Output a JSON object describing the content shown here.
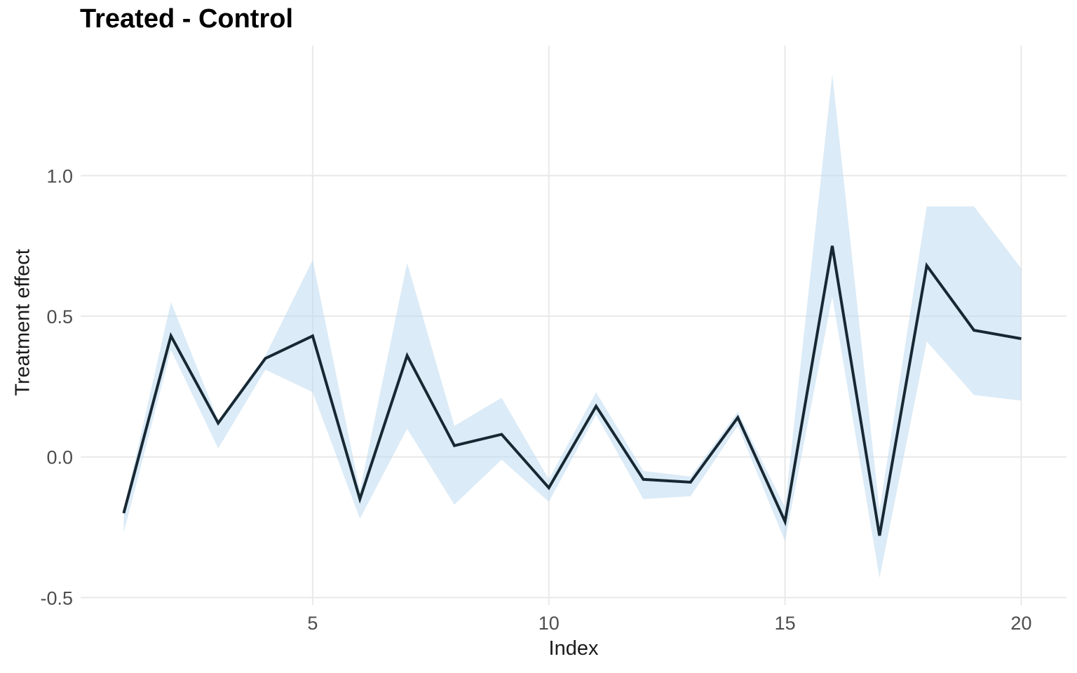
{
  "title": "Treated - Control",
  "chart_data": {
    "type": "line",
    "title": "Treated - Control",
    "xlabel": "Index",
    "ylabel": "Treatment effect",
    "grid": "major-only",
    "legend": "none",
    "xlim": [
      0.05,
      20.95
    ],
    "ylim": [
      -0.55,
      1.46
    ],
    "x": [
      1,
      2,
      3,
      4,
      5,
      6,
      7,
      8,
      9,
      10,
      11,
      12,
      13,
      14,
      15,
      16,
      17,
      18,
      19,
      20
    ],
    "series": [
      {
        "name": "estimate",
        "values": [
          -0.2,
          0.43,
          0.12,
          0.35,
          0.43,
          -0.15,
          0.36,
          0.04,
          0.08,
          -0.11,
          0.18,
          -0.08,
          -0.09,
          0.14,
          -0.23,
          0.75,
          -0.28,
          0.68,
          0.45,
          0.42
        ]
      },
      {
        "name": "ribbon_upper",
        "values": [
          -0.19,
          0.55,
          0.13,
          0.36,
          0.7,
          -0.12,
          0.69,
          0.11,
          0.21,
          -0.08,
          0.23,
          -0.05,
          -0.07,
          0.16,
          -0.18,
          1.36,
          -0.19,
          0.89,
          0.89,
          0.67
        ]
      },
      {
        "name": "ribbon_lower",
        "values": [
          -0.27,
          0.38,
          0.03,
          0.31,
          0.23,
          -0.22,
          0.1,
          -0.17,
          -0.01,
          -0.16,
          0.15,
          -0.15,
          -0.14,
          0.11,
          -0.3,
          0.57,
          -0.43,
          0.41,
          0.22,
          0.2
        ]
      }
    ],
    "xticks": {
      "values": [
        5,
        10,
        15,
        20
      ],
      "labels": [
        "5",
        "10",
        "15",
        "20"
      ]
    },
    "yticks": {
      "values": [
        1.0,
        0.5,
        0.0,
        -0.5
      ],
      "labels": [
        "1.0",
        "0.5",
        "0.0",
        "-0.5"
      ]
    },
    "colors": {
      "line": "#182833",
      "band_fill": "rgba(190,219,240,0.55)",
      "gridline": "#e9e9e9",
      "tick_label": "#4d4d4d",
      "axis_title": "#1a1a1a",
      "title": "#000000",
      "background": "#ffffff"
    }
  }
}
